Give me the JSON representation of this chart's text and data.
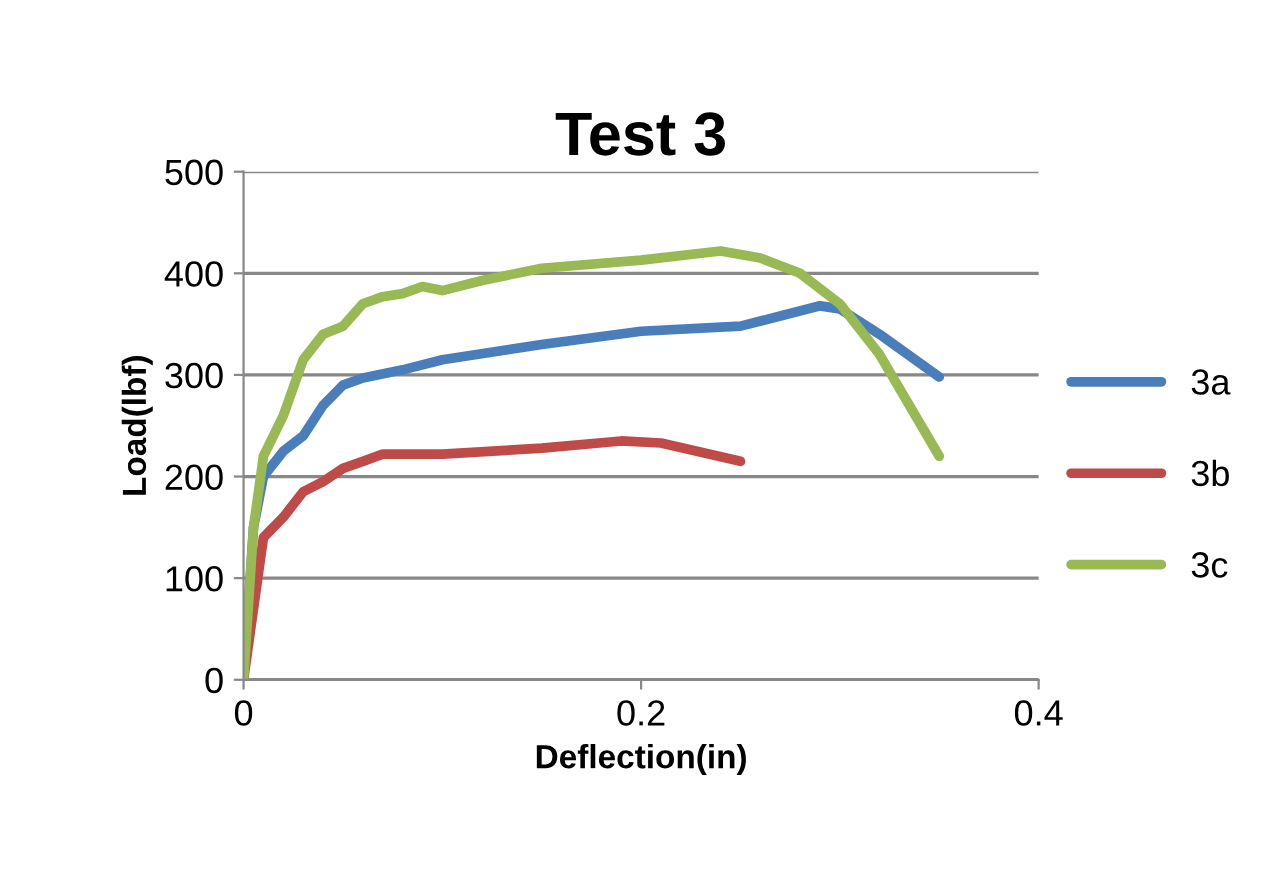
{
  "chart_data": {
    "type": "line",
    "title": "Test 3",
    "xlabel": "Deflection(in)",
    "ylabel": "Load(lbf)",
    "xlim": [
      0,
      0.4
    ],
    "xticks": [
      0,
      0.2,
      0.4
    ],
    "ylim": [
      0,
      500
    ],
    "yticks": [
      0,
      100,
      200,
      300,
      400,
      500
    ],
    "grid": "y",
    "legend": "right",
    "marker": "none",
    "series": [
      {
        "name": "3a",
        "color": "#4a7ebb",
        "x": [
          0,
          0.005,
          0.01,
          0.02,
          0.03,
          0.04,
          0.05,
          0.06,
          0.08,
          0.1,
          0.15,
          0.2,
          0.25,
          0.27,
          0.29,
          0.3,
          0.32,
          0.35
        ],
        "values": [
          0,
          150,
          200,
          225,
          240,
          270,
          290,
          297,
          305,
          315,
          330,
          343,
          348,
          358,
          368,
          365,
          340,
          298
        ]
      },
      {
        "name": "3b",
        "color": "#be4b48",
        "x": [
          0,
          0.01,
          0.02,
          0.03,
          0.04,
          0.05,
          0.06,
          0.07,
          0.1,
          0.15,
          0.19,
          0.21,
          0.25
        ],
        "values": [
          0,
          140,
          160,
          185,
          195,
          208,
          215,
          222,
          222,
          228,
          235,
          233,
          215
        ]
      },
      {
        "name": "3c",
        "color": "#98b954",
        "x": [
          0,
          0.005,
          0.01,
          0.02,
          0.03,
          0.04,
          0.05,
          0.06,
          0.07,
          0.08,
          0.09,
          0.1,
          0.12,
          0.15,
          0.2,
          0.24,
          0.26,
          0.28,
          0.3,
          0.32,
          0.35
        ],
        "values": [
          0,
          150,
          220,
          260,
          315,
          340,
          348,
          370,
          377,
          380,
          387,
          383,
          393,
          405,
          413,
          422,
          415,
          400,
          370,
          320,
          220
        ]
      }
    ]
  }
}
